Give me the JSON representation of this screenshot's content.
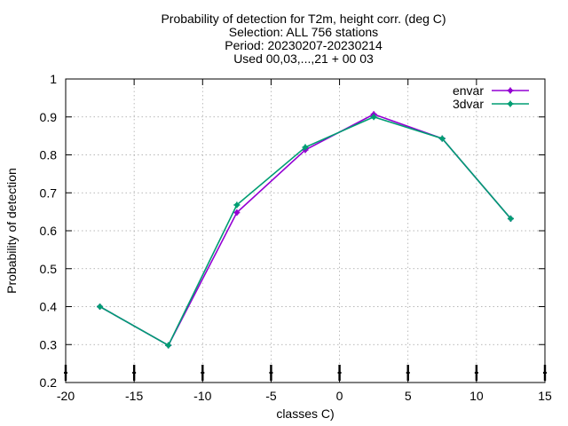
{
  "chart_data": {
    "type": "line",
    "title": [
      "Probability of detection  for T2m, height corr. (deg C)",
      "Selection: ALL    756 stations",
      "Period: 20230207-20230214",
      "Used 00,03,...,21 + 00 03"
    ],
    "xlabel": "classes C)",
    "ylabel": "Probability of detection",
    "xlim": [
      -20,
      15
    ],
    "ylim": [
      0.2,
      1.0
    ],
    "xticks": [
      -20,
      -15,
      -10,
      -5,
      0,
      5,
      10,
      15
    ],
    "yticks": [
      0.2,
      0.3,
      0.4,
      0.5,
      0.6,
      0.7,
      0.8,
      0.9,
      1.0
    ],
    "xtick_labels": [
      "-20",
      "-15",
      "-10",
      "-5",
      "0",
      "5",
      "10",
      "15"
    ],
    "ytick_labels": [
      "0.2",
      "0.3",
      "0.4",
      "0.5",
      "0.6",
      "0.7",
      "0.8",
      "0.9",
      "1"
    ],
    "grid": true,
    "legend_position": "top-right",
    "series": [
      {
        "name": "envar",
        "color": "#9400d3",
        "x": [
          -17.5,
          -12.5,
          -7.5,
          -2.5,
          2.5,
          7.5,
          12.5
        ],
        "y": [
          0.4,
          0.298,
          0.648,
          0.813,
          0.907,
          0.843,
          0.632
        ]
      },
      {
        "name": "3dvar",
        "color": "#009e73",
        "x": [
          -17.5,
          -12.5,
          -7.5,
          -2.5,
          2.5,
          7.5,
          12.5
        ],
        "y": [
          0.4,
          0.298,
          0.668,
          0.82,
          0.9,
          0.843,
          0.632
        ]
      }
    ]
  }
}
